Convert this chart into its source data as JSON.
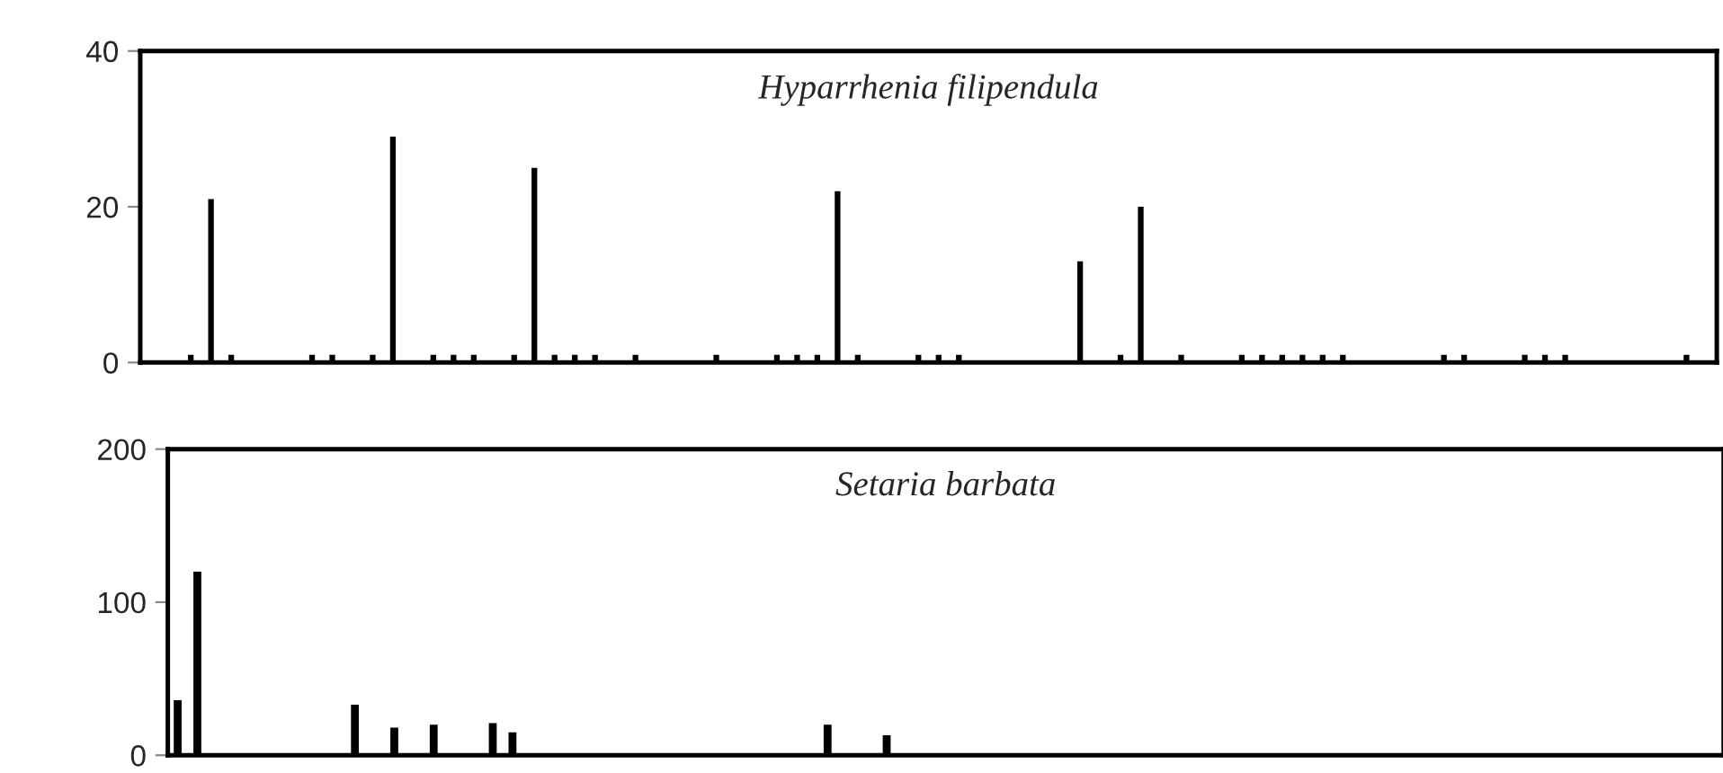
{
  "chart_data": [
    {
      "type": "bar",
      "title": "Hyparrhenia filipendula",
      "categories": [
        null,
        null,
        null,
        null,
        null,
        null,
        null,
        null,
        null,
        null,
        null,
        null,
        null,
        null,
        null,
        null,
        null,
        null,
        null,
        null,
        null,
        null,
        null,
        null,
        null,
        null,
        null,
        null,
        null,
        null,
        null,
        null,
        null,
        null,
        null,
        null,
        null,
        null,
        null,
        null,
        null,
        null,
        null,
        null,
        null,
        null,
        null,
        null,
        null,
        null,
        null,
        null,
        null,
        null,
        null,
        null,
        null,
        null,
        null,
        null,
        null,
        null,
        null,
        null,
        null,
        null,
        null,
        null,
        null,
        null,
        null,
        null,
        null,
        null,
        null,
        null,
        null,
        null
      ],
      "values": [
        0,
        0,
        1,
        21,
        1,
        0,
        0,
        0,
        1,
        1,
        0,
        1,
        29,
        0,
        1,
        1,
        1,
        0,
        1,
        25,
        1,
        1,
        1,
        0,
        1,
        0,
        0,
        0,
        1,
        0,
        0,
        1,
        1,
        1,
        22,
        1,
        0,
        0,
        1,
        1,
        1,
        0,
        0,
        0,
        0,
        0,
        13,
        0,
        1,
        20,
        0,
        1,
        0,
        0,
        1,
        1,
        1,
        1,
        1,
        1,
        0,
        0,
        0,
        0,
        1,
        1,
        0,
        0,
        1,
        1,
        1,
        0,
        0,
        0,
        0,
        0,
        1,
        0
      ],
      "color": "#000000",
      "ylim": [
        0,
        40
      ],
      "yticks": [
        0,
        20,
        40
      ],
      "grid": false,
      "tick_labels": "y"
    },
    {
      "type": "bar",
      "title": "Setaria barbata",
      "categories": [
        null,
        null,
        null,
        null,
        null,
        null,
        null,
        null,
        null,
        null,
        null,
        null,
        null,
        null,
        null,
        null,
        null,
        null,
        null,
        null,
        null,
        null,
        null,
        null,
        null,
        null,
        null,
        null,
        null,
        null,
        null,
        null,
        null,
        null,
        null,
        null,
        null,
        null,
        null,
        null,
        null,
        null,
        null,
        null,
        null,
        null,
        null,
        null,
        null,
        null,
        null,
        null,
        null,
        null,
        null,
        null,
        null,
        null,
        null,
        null,
        null,
        null,
        null,
        null,
        null,
        null,
        null,
        null,
        null,
        null,
        null,
        null,
        null,
        null,
        null,
        null,
        null,
        null,
        null
      ],
      "values": [
        36,
        120,
        0,
        0,
        0,
        0,
        0,
        0,
        0,
        33,
        0,
        18,
        0,
        20,
        0,
        0,
        21,
        15,
        0,
        0,
        0,
        0,
        0,
        0,
        0,
        0,
        0,
        0,
        0,
        0,
        0,
        0,
        0,
        20,
        0,
        0,
        13,
        0,
        0,
        0,
        0,
        0,
        0,
        0,
        0,
        0,
        0,
        0,
        0,
        0,
        0,
        0,
        0,
        0,
        0,
        0,
        0,
        0,
        0,
        0,
        0,
        0,
        0,
        0,
        0,
        0,
        0,
        0,
        0,
        0,
        0,
        0,
        0,
        0,
        0,
        0,
        0,
        0,
        0
      ],
      "color": "#000000",
      "ylim": [
        0,
        200
      ],
      "yticks": [
        0,
        100,
        200
      ],
      "grid": false,
      "tick_labels": "y"
    }
  ]
}
